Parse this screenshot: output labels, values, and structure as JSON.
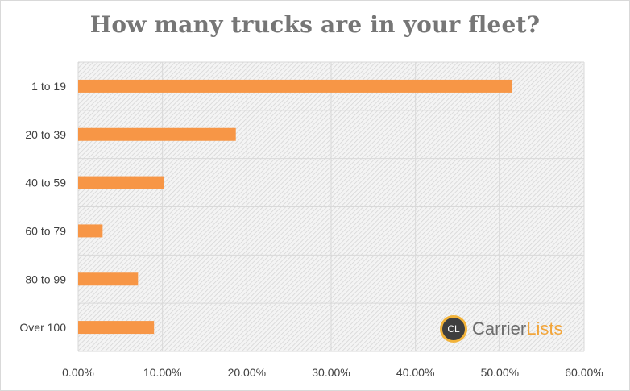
{
  "chart_data": {
    "type": "bar",
    "orientation": "horizontal",
    "title": "How many trucks are in your fleet?",
    "categories": [
      "1 to 19",
      "20 to 39",
      "40 to 59",
      "60 to 79",
      "80 to 99",
      "Over 100"
    ],
    "values": [
      51.5,
      18.7,
      10.2,
      2.9,
      7.1,
      9.0
    ],
    "value_unit": "%",
    "xlim": [
      0,
      60
    ],
    "x_ticks": [
      "0.00%",
      "10.00%",
      "20.00%",
      "30.00%",
      "40.00%",
      "50.00%",
      "60.00%"
    ],
    "grid": true,
    "legend": "none",
    "bar_color": "#f79646"
  },
  "watermark": {
    "badge": "CL",
    "brand_part1": "Carrier",
    "brand_part2": "Lists"
  }
}
